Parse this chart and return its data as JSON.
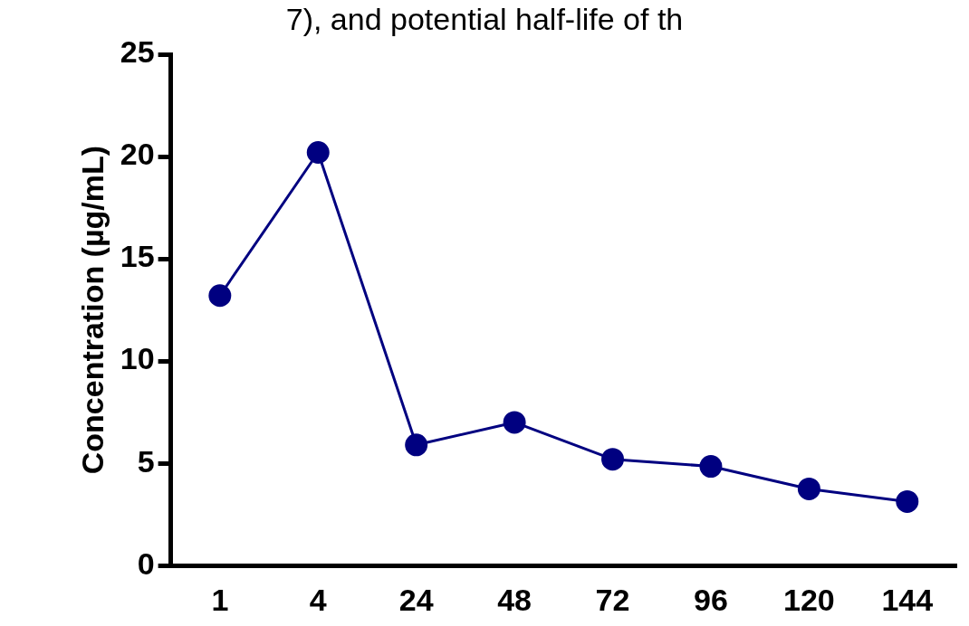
{
  "chart_data": {
    "type": "line",
    "title": "7), and potential half-life of th",
    "ylabel": "Concentration (µg/mL)",
    "categories": [
      "1",
      "4",
      "24",
      "48",
      "72",
      "96",
      "120",
      "144"
    ],
    "series": [
      {
        "color": "#000080",
        "values": [
          13.2,
          20.2,
          5.9,
          7.0,
          5.2,
          4.85,
          3.75,
          3.13
        ]
      }
    ],
    "ylim": [
      0,
      25
    ],
    "yticks": [
      0,
      5,
      10,
      15,
      20,
      25
    ],
    "grid": false,
    "legend": false,
    "marker": "circle",
    "line_style": "solid"
  }
}
